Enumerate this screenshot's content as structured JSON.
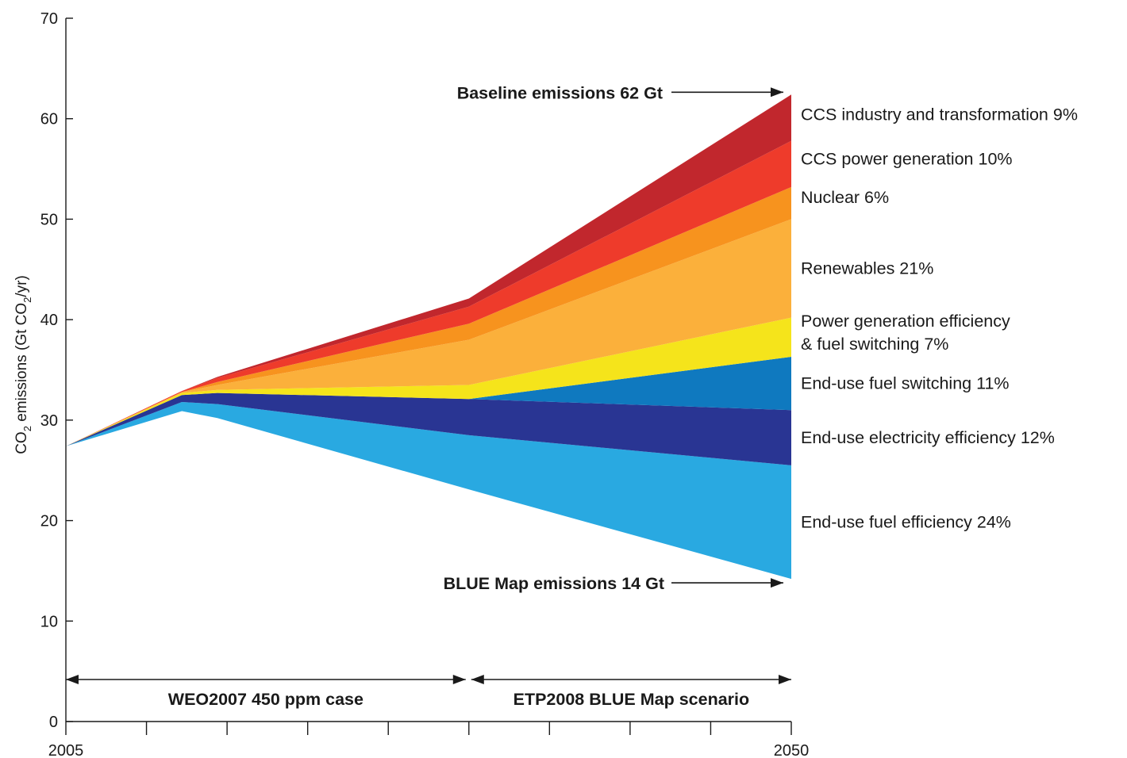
{
  "chart_data": {
    "type": "area",
    "ylabel_main": "CO",
    "ylabel_sub1": "2",
    "ylabel_mid": " emissions (Gt CO",
    "ylabel_sub2": "2",
    "ylabel_end": "/yr)",
    "ylim": [
      0,
      70
    ],
    "y_ticks": [
      "0",
      "10",
      "20",
      "30",
      "40",
      "50",
      "60",
      "70"
    ],
    "xlim": [
      2005,
      2050
    ],
    "x_tick_labels": [
      {
        "x": 2005,
        "label": "2005"
      },
      {
        "x": 2050,
        "label": "2050"
      }
    ],
    "x_minor_ticks": [
      2010,
      2015,
      2020,
      2025,
      2030,
      2035,
      2040,
      2045
    ],
    "grid": false,
    "x": [
      2005,
      2012.2,
      2014.4,
      2030,
      2050
    ],
    "baseline": [
      27.4,
      32.9,
      34.3,
      42.1,
      62.4
    ],
    "blue_map": [
      27.4,
      30.9,
      30.2,
      23.1,
      14.2
    ],
    "series": [
      {
        "name": "End-use fuel efficiency 24%",
        "color": "#29a9e1",
        "bottom": [
          27.4,
          30.9,
          30.2,
          23.1,
          14.2
        ],
        "top": [
          27.4,
          31.8,
          31.6,
          28.5,
          25.5
        ]
      },
      {
        "name": "End-use electricity efficiency 12%",
        "color": "#293593",
        "bottom": [
          27.4,
          31.8,
          31.6,
          28.5,
          25.5
        ],
        "top": [
          27.4,
          32.5,
          32.7,
          32.1,
          31.0
        ]
      },
      {
        "name": "End-use fuel switching 11%",
        "color": "#0f79bf",
        "bottom": [
          27.4,
          32.5,
          32.7,
          32.1,
          31.0
        ],
        "top": [
          27.4,
          32.5,
          32.7,
          32.1,
          36.3
        ]
      },
      {
        "name": "Power generation efficiency & fuel switching 7%",
        "label_lines": [
          "Power generation efficiency",
          "& fuel switching 7%"
        ],
        "color": "#f5e41b",
        "bottom": [
          27.4,
          32.5,
          32.7,
          32.1,
          36.3
        ],
        "top": [
          27.4,
          32.7,
          33.0,
          33.5,
          40.2
        ]
      },
      {
        "name": "Renewables 21%",
        "color": "#fbb03b",
        "bottom": [
          27.4,
          32.7,
          33.0,
          33.5,
          40.2
        ],
        "top": [
          27.4,
          32.8,
          33.5,
          38.0,
          50.0
        ]
      },
      {
        "name": "Nuclear 6%",
        "color": "#f7931e",
        "bottom": [
          27.4,
          32.8,
          33.5,
          38.0,
          50.0
        ],
        "top": [
          27.4,
          32.8,
          33.8,
          39.6,
          53.2
        ]
      },
      {
        "name": "CCS power generation 10%",
        "color": "#ee3b2b",
        "bottom": [
          27.4,
          32.8,
          33.8,
          39.6,
          53.2
        ],
        "top": [
          27.4,
          32.9,
          34.2,
          41.3,
          57.8
        ]
      },
      {
        "name": "CCS industry and transformation 9%",
        "color": "#c1272d",
        "bottom": [
          27.4,
          32.9,
          34.2,
          41.3,
          57.8
        ],
        "top": [
          27.4,
          32.9,
          34.3,
          42.1,
          62.4
        ]
      }
    ],
    "annotations": {
      "baseline_label": "Baseline emissions 62 Gt",
      "bluemap_label": "BLUE Map emissions 14 Gt",
      "period1_label": "WEO2007 450 ppm case",
      "period2_label": "ETP2008 BLUE Map scenario",
      "period1_range": [
        2005,
        2030
      ],
      "period2_range": [
        2030,
        2050
      ]
    }
  }
}
